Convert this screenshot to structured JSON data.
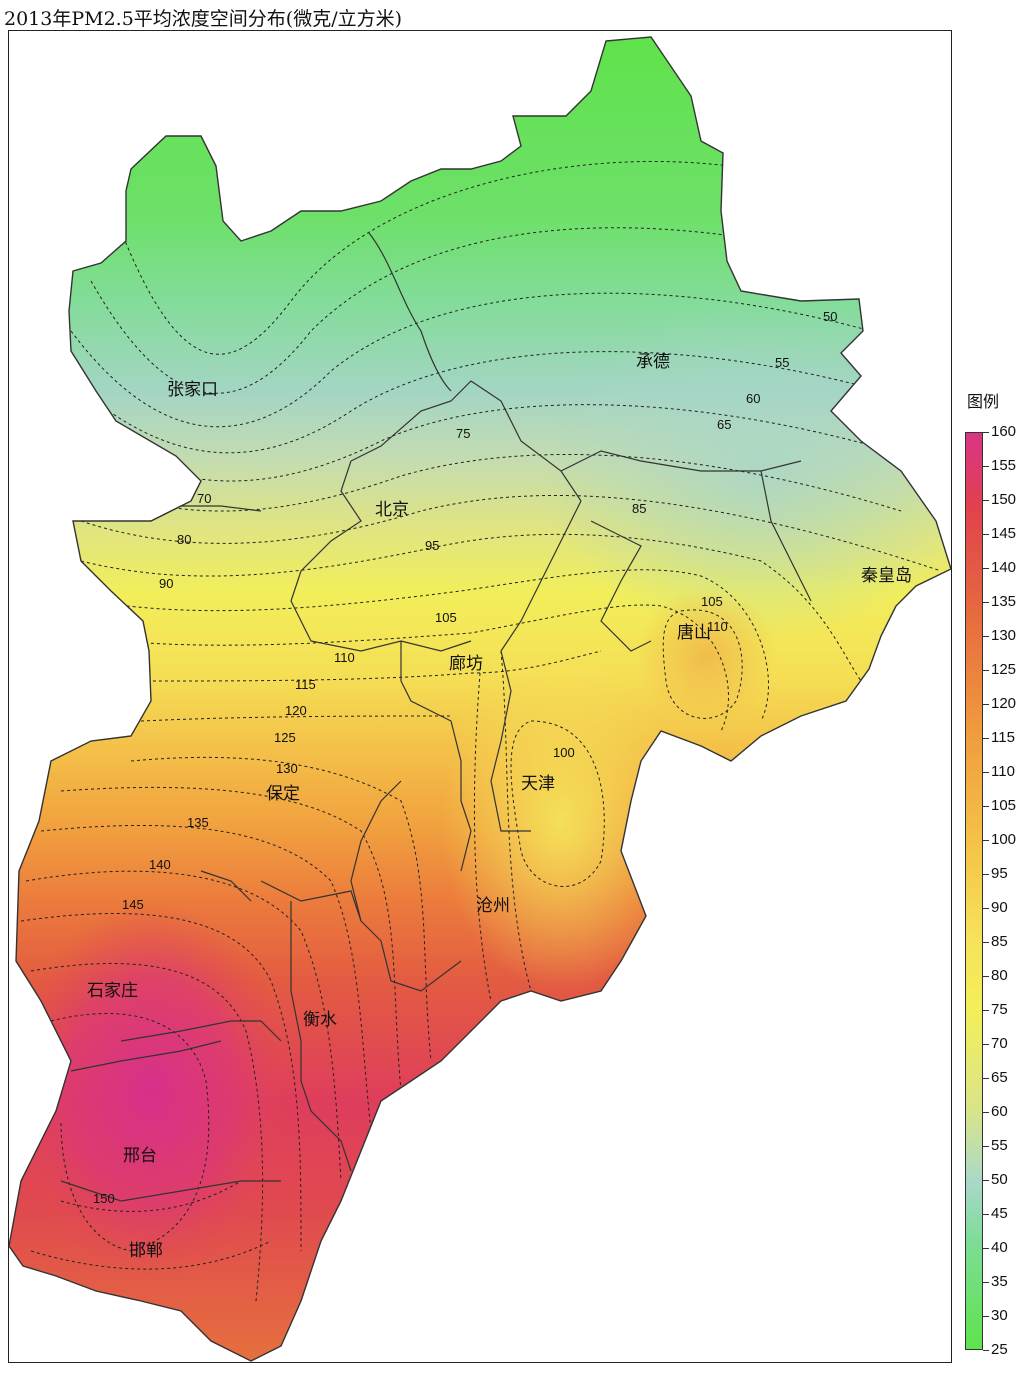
{
  "title": "2013年PM2.5平均浓度空间分布(微克/立方米)",
  "legend": {
    "title": "图例",
    "values": [
      160,
      155,
      150,
      145,
      140,
      135,
      130,
      125,
      120,
      115,
      110,
      105,
      100,
      95,
      90,
      85,
      80,
      75,
      70,
      65,
      60,
      55,
      50,
      45,
      40,
      35,
      30,
      25
    ],
    "colors": {
      "25": "#5ee34c",
      "50": "#7fdc99",
      "60": "#a9d8c9",
      "75": "#d9e48a",
      "90": "#f3ef59",
      "100": "#f6e25a",
      "110": "#f5c348",
      "125": "#f0993e",
      "140": "#e5643f",
      "150": "#e1414e",
      "160": "#d93585"
    }
  },
  "cities": [
    {
      "name": "张家口"
    },
    {
      "name": "承德"
    },
    {
      "name": "北京"
    },
    {
      "name": "秦皇岛"
    },
    {
      "name": "唐山"
    },
    {
      "name": "廊坊"
    },
    {
      "name": "天津"
    },
    {
      "name": "保定"
    },
    {
      "name": "沧州"
    },
    {
      "name": "石家庄"
    },
    {
      "name": "衡水"
    },
    {
      "name": "邢台"
    },
    {
      "name": "邯郸"
    }
  ],
  "contour_labels": [
    "50",
    "55",
    "60",
    "65",
    "75",
    "70",
    "80",
    "85",
    "90",
    "95",
    "105",
    "105",
    "110",
    "115",
    "120",
    "125",
    "130",
    "135",
    "140",
    "145",
    "100",
    "150",
    "110"
  ]
}
